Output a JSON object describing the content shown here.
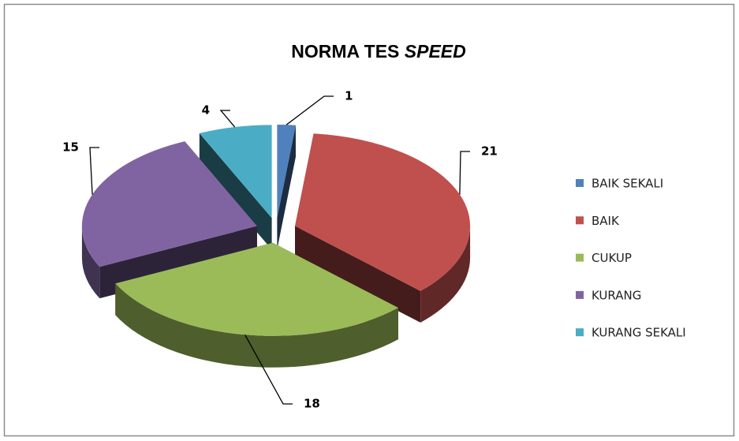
{
  "chart_data": {
    "type": "pie",
    "title": "NORMA TES SPEED",
    "categories": [
      "BAIK SEKALI",
      "BAIK",
      "CUKUP",
      "KURANG",
      "KURANG SEKALI"
    ],
    "values": [
      1,
      21,
      18,
      15,
      4
    ],
    "colors": [
      "#4f81bd",
      "#c0504d",
      "#9bbb59",
      "#8064a2",
      "#4bacc6"
    ],
    "legend": "right"
  }
}
